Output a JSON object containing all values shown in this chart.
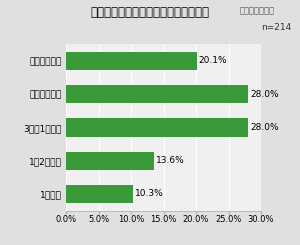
{
  "title": "「効果測定ページ」をいつ見ますか？",
  "subtitle": "（複数回答可）",
  "n_label": "n=214",
  "categories": [
    "配信した当日",
    "配信した翔日",
    "3日～1週間後",
    "1～2週間後",
    "1ヶ月後"
  ],
  "values": [
    20.1,
    28.0,
    28.0,
    13.6,
    10.3
  ],
  "bar_color": "#3a9a3a",
  "background_color": "#e0e0e0",
  "plot_bg_color": "#f0f0f0",
  "xlim": [
    0,
    30
  ],
  "xticks": [
    0,
    5,
    10,
    15,
    20,
    25,
    30
  ],
  "xtick_labels": [
    "0.0%",
    "5.0%",
    "10.0%",
    "15.0%",
    "20.0%",
    "25.0%",
    "30.0%"
  ],
  "title_fontsize": 8.5,
  "subtitle_fontsize": 6.0,
  "label_fontsize": 6.5,
  "value_fontsize": 6.5,
  "tick_fontsize": 6.0,
  "n_fontsize": 6.5
}
